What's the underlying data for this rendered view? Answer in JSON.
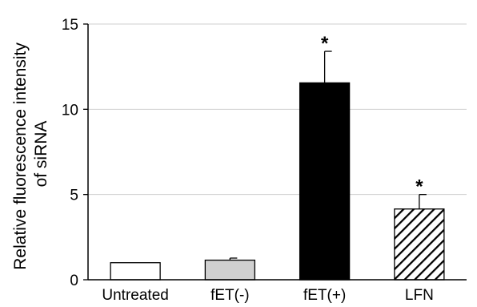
{
  "chart_data": {
    "type": "bar",
    "title": "",
    "xlabel": "",
    "ylabel_lines": [
      "Relative fluorescence intensity",
      "of siRNA"
    ],
    "categories": [
      "Untreated",
      "fET(-)",
      "fET(+)",
      "LFN"
    ],
    "values": [
      1.0,
      1.15,
      11.55,
      4.15
    ],
    "errors": [
      0.0,
      0.12,
      1.85,
      0.85
    ],
    "significance": [
      "",
      "",
      "*",
      "*"
    ],
    "fills": [
      "#ffffff",
      "#d0d0d0",
      "#000000",
      "hatch"
    ],
    "ylim": [
      0,
      15
    ],
    "yticks": [
      0,
      5,
      10,
      15
    ],
    "grid": true
  }
}
